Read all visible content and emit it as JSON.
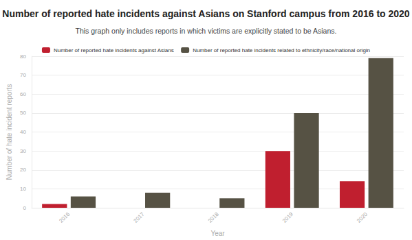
{
  "chart_data": {
    "type": "bar",
    "title": "Number of reported hate incidents against Asians on Stanford campus from 2016 to 2020",
    "subtitle": "This graph only includes reports in which victims are explicitly stated to be Asians.",
    "x_label": "Year",
    "y_label": "Number of hate incident reports",
    "categories": [
      "2016",
      "2017",
      "2018",
      "2019",
      "2020"
    ],
    "series": [
      {
        "name": "Number of reported hate incidents against Asians",
        "color": "#c01f2f",
        "values": [
          2,
          0,
          0,
          30,
          14
        ]
      },
      {
        "name": "Number of reported hate incidents related to ethnicity/race/national origin",
        "color": "#565244",
        "values": [
          6,
          8,
          5,
          50,
          79
        ]
      }
    ],
    "ylim": [
      0,
      80
    ],
    "yticks": [
      0,
      10,
      20,
      30,
      40,
      50,
      60,
      70,
      80
    ],
    "grid": true,
    "legend": "top"
  }
}
